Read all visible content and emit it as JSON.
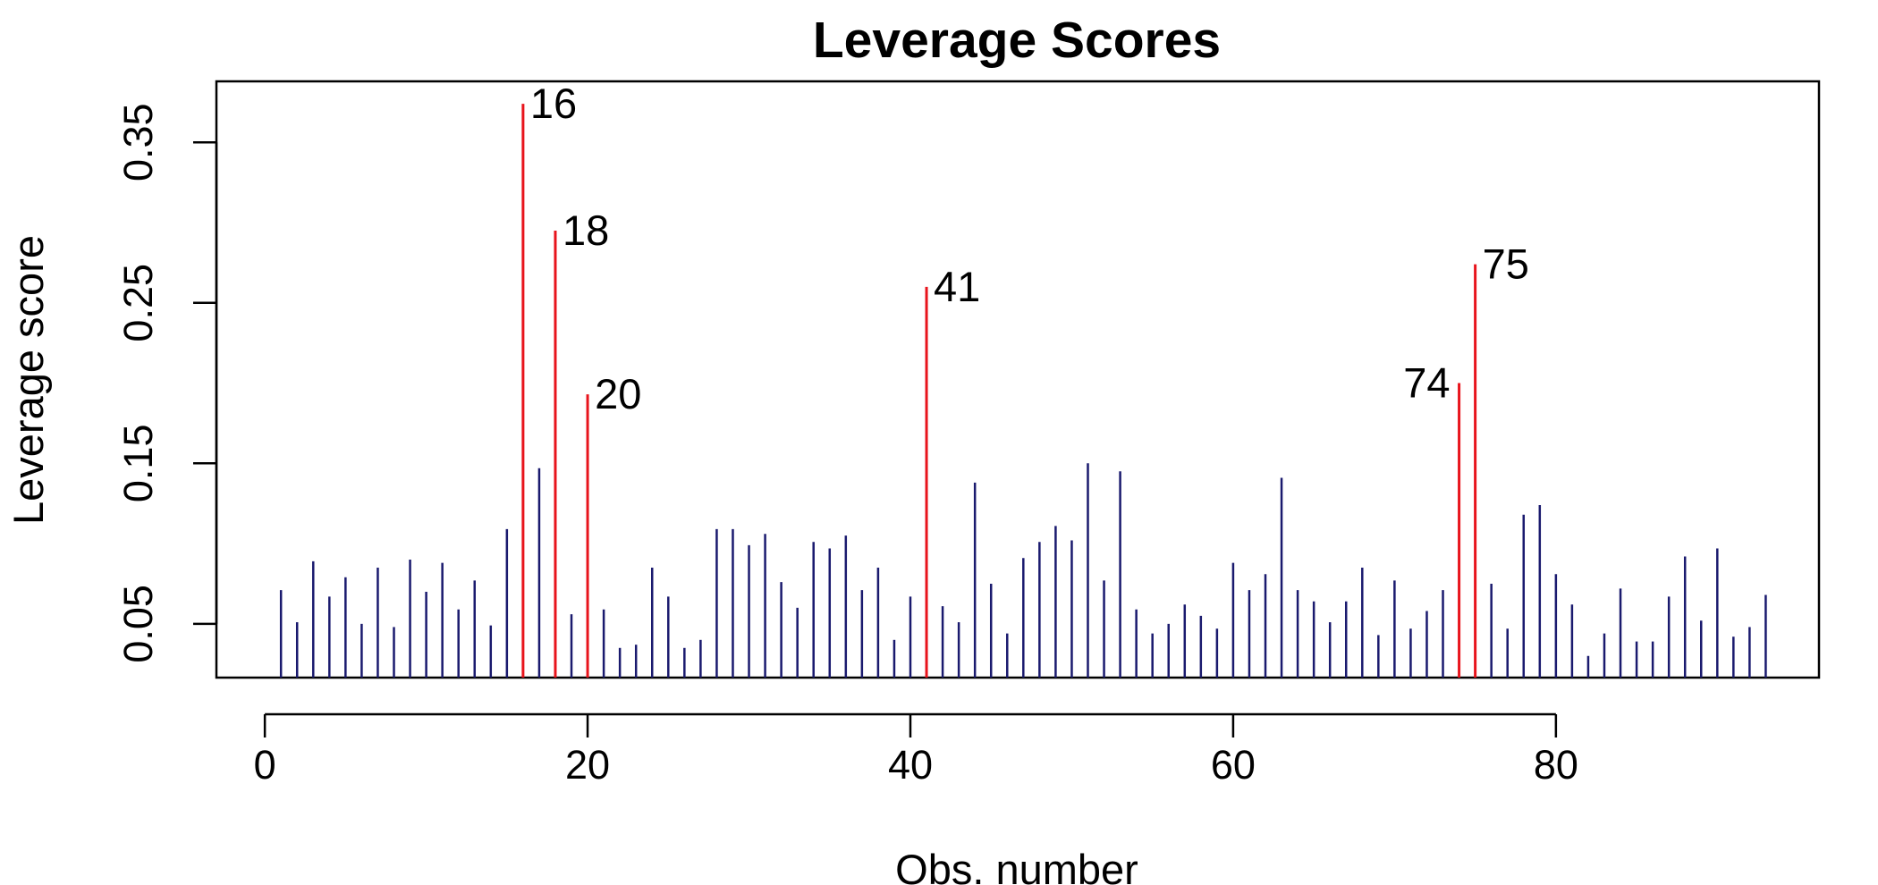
{
  "chart_data": {
    "type": "bar",
    "style": "vertical-lines",
    "title": "Leverage Scores",
    "xlabel": "Obs. number",
    "ylabel": "Leverage score",
    "xlim": [
      -3,
      96.3
    ],
    "ylim": [
      0.0165,
      0.388
    ],
    "xticks": [
      0,
      20,
      40,
      60,
      80
    ],
    "yticks": [
      0.05,
      0.15,
      0.25,
      0.35
    ],
    "grid": false,
    "colors": {
      "normal": "#1a1a6e",
      "highlight": "#e8141c"
    },
    "x": [
      1,
      2,
      3,
      4,
      5,
      6,
      7,
      8,
      9,
      10,
      11,
      12,
      13,
      14,
      15,
      16,
      17,
      18,
      19,
      20,
      21,
      22,
      23,
      24,
      25,
      26,
      27,
      28,
      29,
      30,
      31,
      32,
      33,
      34,
      35,
      36,
      37,
      38,
      39,
      40,
      41,
      42,
      43,
      44,
      45,
      46,
      47,
      48,
      49,
      50,
      51,
      52,
      53,
      54,
      55,
      56,
      57,
      58,
      59,
      60,
      61,
      62,
      63,
      64,
      65,
      66,
      67,
      68,
      69,
      70,
      71,
      72,
      73,
      74,
      75,
      76,
      77,
      78,
      79,
      80,
      81,
      82,
      83,
      84,
      85,
      86,
      87,
      88,
      89,
      90,
      91,
      92,
      93
    ],
    "values": [
      0.071,
      0.051,
      0.089,
      0.067,
      0.079,
      0.05,
      0.085,
      0.048,
      0.09,
      0.07,
      0.088,
      0.059,
      0.077,
      0.049,
      0.109,
      0.374,
      0.147,
      0.295,
      0.056,
      0.193,
      0.059,
      0.035,
      0.037,
      0.085,
      0.067,
      0.035,
      0.04,
      0.109,
      0.109,
      0.099,
      0.106,
      0.076,
      0.06,
      0.101,
      0.097,
      0.105,
      0.071,
      0.085,
      0.04,
      0.067,
      0.26,
      0.061,
      0.051,
      0.138,
      0.075,
      0.044,
      0.091,
      0.101,
      0.111,
      0.102,
      0.15,
      0.077,
      0.145,
      0.059,
      0.044,
      0.05,
      0.062,
      0.055,
      0.047,
      0.088,
      0.071,
      0.081,
      0.141,
      0.071,
      0.064,
      0.051,
      0.064,
      0.085,
      0.043,
      0.077,
      0.047,
      0.058,
      0.071,
      0.2,
      0.274,
      0.075,
      0.047,
      0.118,
      0.124,
      0.081,
      0.062,
      0.03,
      0.044,
      0.072,
      0.039,
      0.039,
      0.067,
      0.092,
      0.052,
      0.097,
      0.042,
      0.048,
      0.068
    ],
    "highlighted": [
      {
        "x": 16,
        "label": "16",
        "side": "right"
      },
      {
        "x": 18,
        "label": "18",
        "side": "right"
      },
      {
        "x": 20,
        "label": "20",
        "side": "right"
      },
      {
        "x": 41,
        "label": "41",
        "side": "right"
      },
      {
        "x": 74,
        "label": "74",
        "side": "left"
      },
      {
        "x": 75,
        "label": "75",
        "side": "right"
      }
    ]
  }
}
